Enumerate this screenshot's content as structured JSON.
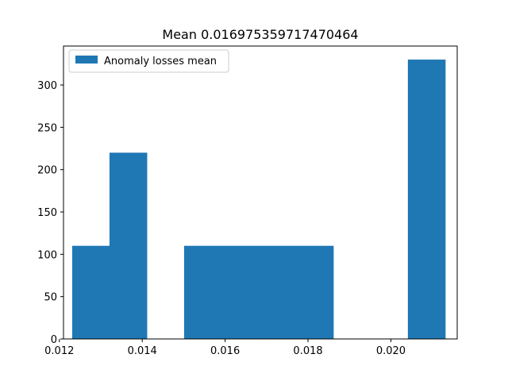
{
  "chart_data": {
    "type": "bar",
    "title": "Mean 0.016975359717470464",
    "xlabel": "",
    "ylabel": "",
    "xlim": [
      0.0121,
      0.0216
    ],
    "ylim": [
      0,
      346
    ],
    "x_ticks": [
      {
        "value": 0.012,
        "label": "0.012"
      },
      {
        "value": 0.014,
        "label": "0.014"
      },
      {
        "value": 0.016,
        "label": "0.016"
      },
      {
        "value": 0.018,
        "label": "0.018"
      },
      {
        "value": 0.02,
        "label": "0.020"
      }
    ],
    "y_ticks": [
      {
        "value": 0,
        "label": "0"
      },
      {
        "value": 50,
        "label": "50"
      },
      {
        "value": 100,
        "label": "100"
      },
      {
        "value": 150,
        "label": "150"
      },
      {
        "value": 200,
        "label": "200"
      },
      {
        "value": 250,
        "label": "250"
      },
      {
        "value": 300,
        "label": "300"
      }
    ],
    "grid": false,
    "legend": {
      "position": "top-left"
    },
    "series": [
      {
        "name": "Anomaly losses mean",
        "color": "#1f77b4",
        "bins": [
          {
            "x0": 0.01231,
            "x1": 0.01321,
            "count": 110
          },
          {
            "x0": 0.01321,
            "x1": 0.01411,
            "count": 220
          },
          {
            "x0": 0.01411,
            "x1": 0.01501,
            "count": 0
          },
          {
            "x0": 0.01501,
            "x1": 0.01591,
            "count": 110
          },
          {
            "x0": 0.01591,
            "x1": 0.01681,
            "count": 110
          },
          {
            "x0": 0.01681,
            "x1": 0.01771,
            "count": 110
          },
          {
            "x0": 0.01771,
            "x1": 0.01861,
            "count": 110
          },
          {
            "x0": 0.01861,
            "x1": 0.01951,
            "count": 0
          },
          {
            "x0": 0.01951,
            "x1": 0.02041,
            "count": 0
          },
          {
            "x0": 0.02041,
            "x1": 0.02131,
            "count": 330
          }
        ]
      }
    ]
  }
}
